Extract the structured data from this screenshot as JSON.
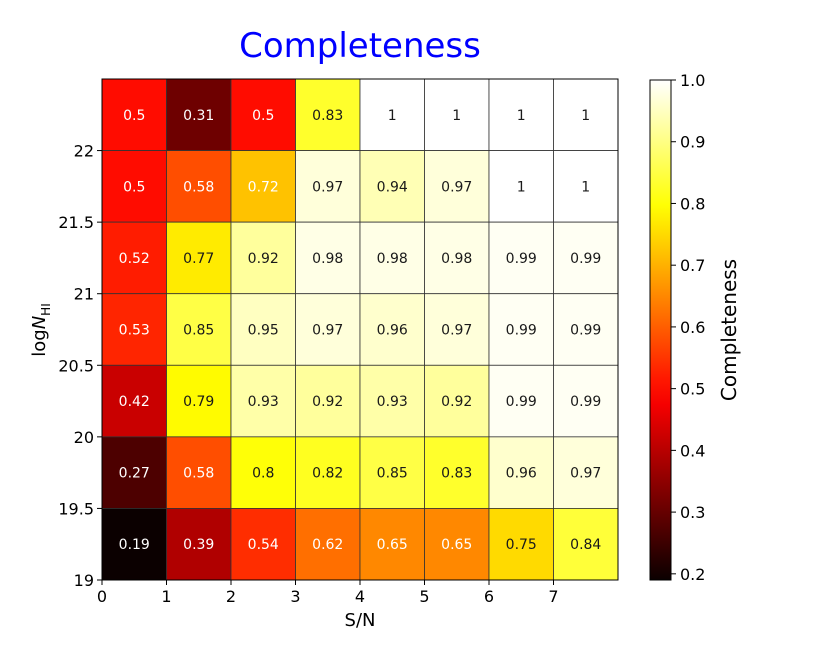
{
  "chart_data": {
    "type": "heatmap",
    "title": "Completeness",
    "title_color": "#0000ff",
    "xlabel": "S/N",
    "ylabel_base": "log",
    "ylabel_var": "N",
    "ylabel_sub": "HI",
    "colorbar_label": "Completeness",
    "colormap": "hot",
    "x_ticks": [
      "0",
      "1",
      "2",
      "3",
      "4",
      "5",
      "6",
      "7"
    ],
    "y_ticks": [
      "19",
      "19.5",
      "20",
      "20.5",
      "21",
      "21.5",
      "22"
    ],
    "colorbar_ticks": [
      "0.2",
      "0.3",
      "0.4",
      "0.5",
      "0.6",
      "0.7",
      "0.8",
      "0.9",
      "1.0"
    ],
    "xlim": [
      0,
      8
    ],
    "ylim": [
      19,
      22.5
    ],
    "clim": [
      0.19,
      1.0
    ],
    "rows_top_to_bottom": [
      [
        "0.5",
        "0.31",
        "0.5",
        "0.83",
        "1",
        "1",
        "1",
        "1"
      ],
      [
        "0.5",
        "0.58",
        "0.72",
        "0.97",
        "0.94",
        "0.97",
        "1",
        "1"
      ],
      [
        "0.52",
        "0.77",
        "0.92",
        "0.98",
        "0.98",
        "0.98",
        "0.99",
        "0.99"
      ],
      [
        "0.53",
        "0.85",
        "0.95",
        "0.97",
        "0.96",
        "0.97",
        "0.99",
        "0.99"
      ],
      [
        "0.42",
        "0.79",
        "0.93",
        "0.92",
        "0.93",
        "0.92",
        "0.99",
        "0.99"
      ],
      [
        "0.27",
        "0.58",
        "0.8",
        "0.82",
        "0.85",
        "0.83",
        "0.96",
        "0.97"
      ],
      [
        "0.19",
        "0.39",
        "0.54",
        "0.62",
        "0.65",
        "0.65",
        "0.75",
        "0.84"
      ]
    ]
  }
}
